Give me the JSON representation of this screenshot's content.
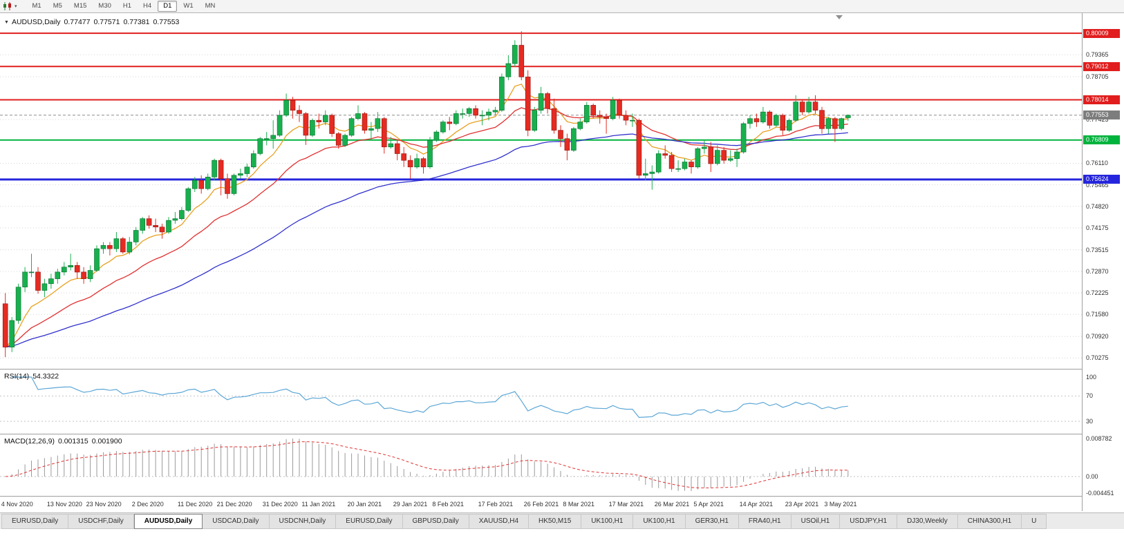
{
  "toolbar": {
    "timeframes": [
      "M1",
      "M5",
      "M15",
      "M30",
      "H1",
      "H4",
      "D1",
      "W1",
      "MN"
    ],
    "active_timeframe": "D1"
  },
  "chart": {
    "symbol_label": "AUDUSD,Daily",
    "open": "0.77477",
    "high": "0.77571",
    "low": "0.77381",
    "close": "0.77553"
  },
  "price_axis": {
    "grid_values": [
      "0.79365",
      "0.78705",
      "0.77423",
      "0.76110",
      "0.75465",
      "0.74820",
      "0.74175",
      "0.73515",
      "0.72870",
      "0.72225",
      "0.71580",
      "0.70920",
      "0.70275"
    ],
    "current_label": "0.77553",
    "current_badge_color": "#7d7d7d"
  },
  "rsi_panel": {
    "label": "RSI(14)",
    "value": "54.3322",
    "line_color": "#5ba6d6",
    "axis_values": [
      "100",
      "70",
      "30"
    ],
    "level_lines": [
      70,
      30
    ]
  },
  "macd_panel": {
    "label": "MACD(12,26,9)",
    "main_value": "0.001315",
    "signal_value": "0.001900",
    "axis_values": [
      "0.008782",
      "0.00",
      "-0.004451"
    ],
    "histogram_color": "#9a9a9a",
    "signal_color": "#e03030"
  },
  "tabs": {
    "active_index": 2,
    "items": [
      "EURUSD,Daily",
      "USDCHF,Daily",
      "AUDUSD,Daily",
      "USDCAD,Daily",
      "USDCNH,Daily",
      "EURUSD,Daily",
      "GBPUSD,Daily",
      "XAUUSD,H4",
      "HK50,M15",
      "UK100,H1",
      "UK100,H1",
      "GER30,H1",
      "FRA40,H1",
      "USOil,H1",
      "USDJPY,H1",
      "DJ30,Weekly",
      "CHINA300,H1",
      "U"
    ],
    "note": "active tab is AUDUSD,Daily"
  },
  "chart_data": {
    "type": "candlestick",
    "symbol": "AUDUSD",
    "timeframe": "Daily",
    "ylim": [
      0.6995,
      0.8055
    ],
    "current_price": 0.77553,
    "layout": {
      "candle_spacing": 9.45,
      "x_offset": 3,
      "candle_width": 7
    },
    "colors": {
      "bull": "#18b04e",
      "bull_border": "#076b2d",
      "bear": "#e52b22",
      "bear_border": "#8f130d",
      "grid": "#d4d4d4",
      "background": "#ffffff"
    },
    "horizontal_lines": [
      {
        "price": 0.80009,
        "label": "0.80009",
        "color": "#e11d1d",
        "width": 2
      },
      {
        "price": 0.79012,
        "label": "0.79012",
        "color": "#e11d1d",
        "width": 2
      },
      {
        "price": 0.78014,
        "label": "0.78014",
        "color": "#e11d1d",
        "width": 2
      },
      {
        "price": 0.76809,
        "label": "0.76809",
        "color": "#00b33c",
        "width": 2
      },
      {
        "price": 0.75624,
        "label": "0.75624",
        "color": "#2525dd",
        "width": 3
      }
    ],
    "moving_averages": [
      {
        "name": "ma-fast",
        "period": 8,
        "color": "#e8a020"
      },
      {
        "name": "ma-medium",
        "period": 21,
        "color": "#e03030"
      },
      {
        "name": "ma-slow",
        "period": 55,
        "color": "#3030cc"
      }
    ],
    "indicators": [
      {
        "name": "RSI",
        "period": 14,
        "current_value": 54.3322,
        "levels": [
          30,
          70
        ]
      },
      {
        "name": "MACD",
        "params": [
          12,
          26,
          9
        ],
        "main_value": 0.001315,
        "signal_value": 0.0019
      }
    ],
    "x_ticks": [
      {
        "label": "4 Nov 2020",
        "i": 0
      },
      {
        "label": "13 Nov 2020",
        "i": 7
      },
      {
        "label": "23 Nov 2020",
        "i": 13
      },
      {
        "label": "2 Dec 2020",
        "i": 20
      },
      {
        "label": "11 Dec 2020",
        "i": 27
      },
      {
        "label": "21 Dec 2020",
        "i": 33
      },
      {
        "label": "31 Dec 2020",
        "i": 40
      },
      {
        "label": "11 Jan 2021",
        "i": 46
      },
      {
        "label": "20 Jan 2021",
        "i": 53
      },
      {
        "label": "29 Jan 2021",
        "i": 60
      },
      {
        "label": "8 Feb 2021",
        "i": 66
      },
      {
        "label": "17 Feb 2021",
        "i": 73
      },
      {
        "label": "26 Feb 2021",
        "i": 80
      },
      {
        "label": "8 Mar 2021",
        "i": 86
      },
      {
        "label": "17 Mar 2021",
        "i": 93
      },
      {
        "label": "26 Mar 2021",
        "i": 100
      },
      {
        "label": "5 Apr 2021",
        "i": 106
      },
      {
        "label": "14 Apr 2021",
        "i": 113
      },
      {
        "label": "23 Apr 2021",
        "i": 120
      },
      {
        "label": "3 May 2021",
        "i": 126
      }
    ],
    "candles": [
      [
        0.719,
        0.7222,
        0.703,
        0.706
      ],
      [
        0.706,
        0.715,
        0.7045,
        0.714
      ],
      [
        0.714,
        0.725,
        0.713,
        0.724
      ],
      [
        0.724,
        0.73,
        0.7225,
        0.7285
      ],
      [
        0.7285,
        0.734,
        0.727,
        0.7285
      ],
      [
        0.7285,
        0.73,
        0.722,
        0.723
      ],
      [
        0.723,
        0.7265,
        0.721,
        0.725
      ],
      [
        0.725,
        0.728,
        0.7235,
        0.7265
      ],
      [
        0.7265,
        0.7295,
        0.725,
        0.7285
      ],
      [
        0.7285,
        0.7315,
        0.7275,
        0.73
      ],
      [
        0.73,
        0.734,
        0.729,
        0.7305
      ],
      [
        0.7305,
        0.7315,
        0.7265,
        0.7285
      ],
      [
        0.7285,
        0.73,
        0.725,
        0.7265
      ],
      [
        0.7265,
        0.7305,
        0.7255,
        0.729
      ],
      [
        0.729,
        0.7365,
        0.7285,
        0.7355
      ],
      [
        0.7355,
        0.7375,
        0.734,
        0.7365
      ],
      [
        0.7365,
        0.7375,
        0.7335,
        0.7355
      ],
      [
        0.7355,
        0.7405,
        0.7345,
        0.7385
      ],
      [
        0.7385,
        0.739,
        0.734,
        0.7345
      ],
      [
        0.7345,
        0.739,
        0.7338,
        0.7375
      ],
      [
        0.7375,
        0.742,
        0.7365,
        0.741
      ],
      [
        0.741,
        0.745,
        0.74,
        0.7445
      ],
      [
        0.7445,
        0.7455,
        0.7415,
        0.7425
      ],
      [
        0.7425,
        0.7445,
        0.7405,
        0.742
      ],
      [
        0.742,
        0.743,
        0.7385,
        0.7405
      ],
      [
        0.7405,
        0.745,
        0.74,
        0.744
      ],
      [
        0.744,
        0.7465,
        0.743,
        0.7445
      ],
      [
        0.7445,
        0.748,
        0.744,
        0.747
      ],
      [
        0.747,
        0.754,
        0.7465,
        0.7535
      ],
      [
        0.7535,
        0.757,
        0.7525,
        0.756
      ],
      [
        0.756,
        0.7575,
        0.752,
        0.7535
      ],
      [
        0.7535,
        0.758,
        0.753,
        0.757
      ],
      [
        0.757,
        0.7625,
        0.756,
        0.762
      ],
      [
        0.762,
        0.7625,
        0.7515,
        0.7565
      ],
      [
        0.7565,
        0.758,
        0.7505,
        0.752
      ],
      [
        0.752,
        0.758,
        0.7515,
        0.7575
      ],
      [
        0.7575,
        0.7595,
        0.7565,
        0.758
      ],
      [
        0.758,
        0.761,
        0.757,
        0.76
      ],
      [
        0.76,
        0.765,
        0.7595,
        0.764
      ],
      [
        0.764,
        0.769,
        0.7635,
        0.7685
      ],
      [
        0.7685,
        0.7705,
        0.7665,
        0.7685
      ],
      [
        0.7685,
        0.774,
        0.7655,
        0.7695
      ],
      [
        0.7695,
        0.777,
        0.769,
        0.7755
      ],
      [
        0.7755,
        0.782,
        0.775,
        0.78
      ],
      [
        0.78,
        0.781,
        0.7745,
        0.777
      ],
      [
        0.777,
        0.7785,
        0.7735,
        0.776
      ],
      [
        0.776,
        0.7765,
        0.7666,
        0.7695
      ],
      [
        0.7695,
        0.7745,
        0.769,
        0.774
      ],
      [
        0.774,
        0.776,
        0.7715,
        0.7735
      ],
      [
        0.7735,
        0.777,
        0.7725,
        0.7755
      ],
      [
        0.7755,
        0.776,
        0.769,
        0.77
      ],
      [
        0.77,
        0.7705,
        0.7655,
        0.7665
      ],
      [
        0.7665,
        0.77,
        0.766,
        0.7695
      ],
      [
        0.7695,
        0.775,
        0.769,
        0.7745
      ],
      [
        0.7745,
        0.7785,
        0.774,
        0.776
      ],
      [
        0.776,
        0.7765,
        0.77,
        0.771
      ],
      [
        0.771,
        0.7735,
        0.768,
        0.7715
      ],
      [
        0.7715,
        0.7765,
        0.7705,
        0.7745
      ],
      [
        0.7745,
        0.775,
        0.764,
        0.766
      ],
      [
        0.766,
        0.769,
        0.7655,
        0.767
      ],
      [
        0.767,
        0.768,
        0.762,
        0.764
      ],
      [
        0.764,
        0.766,
        0.76,
        0.762
      ],
      [
        0.762,
        0.7635,
        0.7565,
        0.76
      ],
      [
        0.76,
        0.764,
        0.7595,
        0.7625
      ],
      [
        0.7625,
        0.763,
        0.758,
        0.76
      ],
      [
        0.76,
        0.769,
        0.7595,
        0.768
      ],
      [
        0.768,
        0.771,
        0.7675,
        0.7705
      ],
      [
        0.7705,
        0.774,
        0.77,
        0.7735
      ],
      [
        0.7735,
        0.775,
        0.771,
        0.773
      ],
      [
        0.773,
        0.777,
        0.7725,
        0.776
      ],
      [
        0.776,
        0.7775,
        0.7745,
        0.776
      ],
      [
        0.776,
        0.778,
        0.775,
        0.7775
      ],
      [
        0.7775,
        0.7785,
        0.7745,
        0.7755
      ],
      [
        0.7755,
        0.777,
        0.7725,
        0.7755
      ],
      [
        0.7755,
        0.7775,
        0.774,
        0.7765
      ],
      [
        0.7765,
        0.778,
        0.7755,
        0.777
      ],
      [
        0.777,
        0.788,
        0.7765,
        0.787
      ],
      [
        0.787,
        0.7935,
        0.786,
        0.791
      ],
      [
        0.791,
        0.798,
        0.79,
        0.7965
      ],
      [
        0.7965,
        0.8007,
        0.786,
        0.787
      ],
      [
        0.787,
        0.789,
        0.7692,
        0.771
      ],
      [
        0.771,
        0.778,
        0.7705,
        0.777
      ],
      [
        0.777,
        0.784,
        0.776,
        0.782
      ],
      [
        0.782,
        0.7825,
        0.776,
        0.7775
      ],
      [
        0.7775,
        0.7805,
        0.77,
        0.771
      ],
      [
        0.771,
        0.7725,
        0.766,
        0.7685
      ],
      [
        0.7685,
        0.77,
        0.762,
        0.765
      ],
      [
        0.765,
        0.772,
        0.7645,
        0.7715
      ],
      [
        0.7715,
        0.7745,
        0.771,
        0.7735
      ],
      [
        0.7735,
        0.7795,
        0.773,
        0.7785
      ],
      [
        0.7785,
        0.779,
        0.7745,
        0.7755
      ],
      [
        0.7755,
        0.777,
        0.773,
        0.775
      ],
      [
        0.775,
        0.776,
        0.77,
        0.7745
      ],
      [
        0.7745,
        0.781,
        0.774,
        0.78
      ],
      [
        0.78,
        0.7805,
        0.7745,
        0.7755
      ],
      [
        0.7755,
        0.777,
        0.7725,
        0.774
      ],
      [
        0.774,
        0.776,
        0.772,
        0.774
      ],
      [
        0.774,
        0.7745,
        0.7565,
        0.7575
      ],
      [
        0.7575,
        0.7625,
        0.756,
        0.758
      ],
      [
        0.758,
        0.7605,
        0.7532,
        0.7585
      ],
      [
        0.7585,
        0.765,
        0.758,
        0.764
      ],
      [
        0.764,
        0.7665,
        0.7625,
        0.7635
      ],
      [
        0.7635,
        0.7645,
        0.7585,
        0.7595
      ],
      [
        0.7595,
        0.762,
        0.7585,
        0.7595
      ],
      [
        0.7595,
        0.7625,
        0.759,
        0.7615
      ],
      [
        0.7615,
        0.762,
        0.758,
        0.76
      ],
      [
        0.76,
        0.766,
        0.7595,
        0.7655
      ],
      [
        0.7655,
        0.768,
        0.764,
        0.766
      ],
      [
        0.766,
        0.7675,
        0.7585,
        0.761
      ],
      [
        0.761,
        0.7665,
        0.7605,
        0.765
      ],
      [
        0.765,
        0.766,
        0.761,
        0.762
      ],
      [
        0.762,
        0.765,
        0.7615,
        0.7625
      ],
      [
        0.7625,
        0.7655,
        0.76,
        0.7645
      ],
      [
        0.7645,
        0.7735,
        0.764,
        0.773
      ],
      [
        0.773,
        0.7755,
        0.7715,
        0.7745
      ],
      [
        0.7745,
        0.776,
        0.772,
        0.7735
      ],
      [
        0.7735,
        0.778,
        0.773,
        0.7765
      ],
      [
        0.7765,
        0.777,
        0.7715,
        0.7725
      ],
      [
        0.7725,
        0.776,
        0.772,
        0.7755
      ],
      [
        0.7755,
        0.776,
        0.7695,
        0.771
      ],
      [
        0.771,
        0.7745,
        0.7705,
        0.774
      ],
      [
        0.774,
        0.7815,
        0.7735,
        0.7795
      ],
      [
        0.7795,
        0.78,
        0.7755,
        0.7765
      ],
      [
        0.7765,
        0.781,
        0.776,
        0.7795
      ],
      [
        0.7795,
        0.7815,
        0.776,
        0.777
      ],
      [
        0.777,
        0.778,
        0.77,
        0.7715
      ],
      [
        0.7715,
        0.775,
        0.77,
        0.7745
      ],
      [
        0.7745,
        0.775,
        0.7675,
        0.7715
      ],
      [
        0.7715,
        0.7748,
        0.771,
        0.7745
      ],
      [
        0.77477,
        0.77571,
        0.77381,
        0.77553
      ]
    ]
  }
}
